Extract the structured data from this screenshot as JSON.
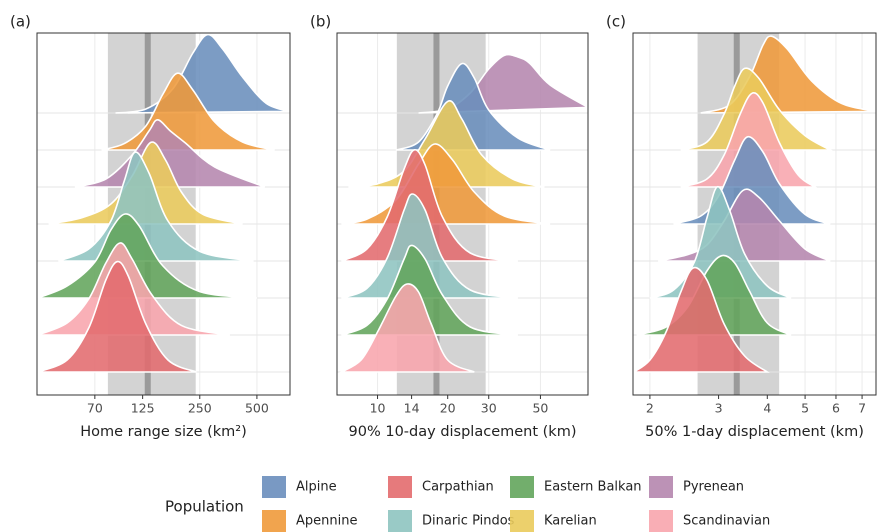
{
  "chart_data": [
    {
      "type": "ridgeline",
      "panel_label": "(a)",
      "xlabel": "Home range size (km²)",
      "xscale": "log",
      "xlim": [
        34.7,
        747
      ],
      "xticks": [
        70,
        125,
        250,
        500
      ],
      "band": [
        82,
        238
      ],
      "median": 133,
      "series": [
        {
          "name": "Alpine",
          "color": "#6a8ebc",
          "x": [
            90,
            130,
            180,
            230,
            275,
            330,
            420,
            560,
            740
          ],
          "values": [
            0,
            0.05,
            0.3,
            0.75,
            0.98,
            0.8,
            0.45,
            0.12,
            0.02
          ]
        },
        {
          "name": "Apennine",
          "color": "#ef9a3b",
          "x": [
            76,
            100,
            130,
            160,
            191,
            230,
            300,
            420,
            620
          ],
          "values": [
            0,
            0.08,
            0.3,
            0.7,
            0.96,
            0.75,
            0.35,
            0.1,
            0
          ]
        },
        {
          "name": "Pyrenean",
          "color": "#b586ae",
          "x": [
            55,
            80,
            110,
            135,
            150,
            175,
            210,
            300,
            550
          ],
          "values": [
            0,
            0.1,
            0.4,
            0.7,
            0.84,
            0.7,
            0.55,
            0.25,
            0
          ]
        },
        {
          "name": "Karelian",
          "color": "#eacb5c",
          "x": [
            40,
            60,
            85,
            110,
            138,
            165,
            200,
            260,
            420
          ],
          "values": [
            0,
            0.08,
            0.25,
            0.6,
            1.02,
            0.8,
            0.4,
            0.12,
            0
          ]
        },
        {
          "name": "Dinaric Pindos",
          "color": "#8ec4c0",
          "x": [
            45,
            65,
            85,
            100,
            114,
            135,
            170,
            250,
            480
          ],
          "values": [
            0,
            0.15,
            0.5,
            1.0,
            1.36,
            1.1,
            0.5,
            0.12,
            0
          ]
        },
        {
          "name": "Eastern Balkan",
          "color": "#63a55c",
          "x": [
            35,
            50,
            70,
            85,
            101,
            120,
            160,
            250,
            500
          ],
          "values": [
            0,
            0.15,
            0.45,
            0.85,
            1.05,
            0.9,
            0.4,
            0.08,
            0
          ]
        },
        {
          "name": "Scandinavian",
          "color": "#f8a5ad",
          "x": [
            35,
            50,
            65,
            80,
            95,
            110,
            140,
            200,
            360
          ],
          "values": [
            0,
            0.15,
            0.45,
            0.9,
            1.15,
            0.95,
            0.5,
            0.12,
            0
          ]
        },
        {
          "name": "Carpathian",
          "color": "#e36b6e",
          "x": [
            35,
            50,
            65,
            80,
            92,
            105,
            130,
            170,
            240
          ],
          "values": [
            0,
            0.15,
            0.55,
            1.15,
            1.38,
            1.2,
            0.6,
            0.15,
            0
          ]
        }
      ]
    },
    {
      "type": "ridgeline",
      "panel_label": "(b)",
      "xlabel": "90% 10-day displacement (km)",
      "xscale": "log",
      "xlim": [
        6.7,
        80
      ],
      "xticks": [
        10,
        14,
        20,
        30,
        50
      ],
      "band": [
        12.1,
        29.1
      ],
      "median": 17.9,
      "series": [
        {
          "name": "Pyrenean",
          "color": "#b586ae",
          "x": [
            15,
            20,
            25,
            30,
            35,
            40,
            45,
            55,
            80
          ],
          "values": [
            0,
            0.05,
            0.25,
            0.55,
            0.72,
            0.7,
            0.62,
            0.35,
            0.07
          ]
        },
        {
          "name": "Alpine",
          "color": "#6a8ebc",
          "x": [
            12,
            15,
            18,
            20,
            23,
            26,
            30,
            40,
            55
          ],
          "values": [
            0,
            0.1,
            0.45,
            0.8,
            1.08,
            0.9,
            0.5,
            0.15,
            0
          ]
        },
        {
          "name": "Karelian",
          "color": "#eacb5c",
          "x": [
            7.5,
            10,
            13,
            16,
            20,
            23,
            28,
            38,
            52
          ],
          "values": [
            0,
            0.04,
            0.2,
            0.6,
            1.07,
            0.85,
            0.4,
            0.1,
            0
          ]
        },
        {
          "name": "Apennine",
          "color": "#ef9a3b",
          "x": [
            7,
            9,
            12,
            15,
            17.6,
            21,
            26,
            35,
            55
          ],
          "values": [
            0,
            0.06,
            0.3,
            0.75,
            1.0,
            0.8,
            0.4,
            0.1,
            0
          ]
        },
        {
          "name": "Carpathian",
          "color": "#e36b6e",
          "x": [
            7,
            9,
            11,
            13,
            14.4,
            16,
            19,
            25,
            40
          ],
          "values": [
            0,
            0.15,
            0.55,
            1.15,
            1.39,
            1.2,
            0.55,
            0.1,
            0
          ]
        },
        {
          "name": "Dinaric Pindos",
          "color": "#8ec4c0",
          "x": [
            7,
            9,
            11,
            13,
            14.1,
            16,
            19,
            25,
            40
          ],
          "values": [
            0,
            0.12,
            0.5,
            1.1,
            1.3,
            1.1,
            0.5,
            0.1,
            0
          ]
        },
        {
          "name": "Eastern Balkan",
          "color": "#63a55c",
          "x": [
            7,
            9,
            11,
            13,
            14,
            16,
            19,
            25,
            40
          ],
          "values": [
            0,
            0.12,
            0.45,
            0.95,
            1.12,
            0.95,
            0.5,
            0.1,
            0
          ]
        },
        {
          "name": "Scandinavian",
          "color": "#f8a5ad",
          "x": [
            7,
            8.5,
            10,
            12,
            13.4,
            15,
            17,
            20,
            26
          ],
          "values": [
            0,
            0.15,
            0.5,
            0.95,
            1.1,
            1.0,
            0.6,
            0.15,
            0
          ]
        }
      ]
    },
    {
      "type": "ridgeline",
      "panel_label": "(c)",
      "xlabel": "50% 1-day displacement (km)",
      "xscale": "log",
      "xlim": [
        1.81,
        7.6
      ],
      "xticks": [
        2,
        3,
        4,
        5,
        6,
        7
      ],
      "band": [
        2.65,
        4.29
      ],
      "median": 3.34,
      "series": [
        {
          "name": "Apennine",
          "color": "#ef9a3b",
          "x": [
            2.7,
            3.2,
            3.6,
            3.9,
            4.1,
            4.5,
            5.2,
            6.2,
            7.6
          ],
          "values": [
            0,
            0.1,
            0.45,
            0.85,
            0.96,
            0.8,
            0.4,
            0.12,
            0.02
          ]
        },
        {
          "name": "Karelian",
          "color": "#eacb5c",
          "x": [
            2.4,
            2.8,
            3.1,
            3.3,
            3.5,
            3.8,
            4.3,
            5,
            5.8
          ],
          "values": [
            0,
            0.1,
            0.45,
            0.8,
            1.02,
            0.9,
            0.5,
            0.18,
            0
          ]
        },
        {
          "name": "Scandinavian",
          "color": "#f8a5ad",
          "x": [
            2.4,
            2.8,
            3.1,
            3.4,
            3.65,
            3.9,
            4.3,
            4.8,
            5.3
          ],
          "values": [
            0,
            0.1,
            0.4,
            0.9,
            1.17,
            1.05,
            0.55,
            0.15,
            0
          ]
        },
        {
          "name": "Alpine",
          "color": "#6a8ebc",
          "x": [
            2.3,
            2.7,
            3.0,
            3.3,
            3.56,
            3.9,
            4.3,
            5,
            5.8
          ],
          "values": [
            0,
            0.1,
            0.35,
            0.8,
            1.09,
            0.9,
            0.5,
            0.12,
            0
          ]
        },
        {
          "name": "Pyrenean",
          "color": "#b586ae",
          "x": [
            2.1,
            2.5,
            2.8,
            3.1,
            3.46,
            3.8,
            4.3,
            5,
            5.8
          ],
          "values": [
            0,
            0.08,
            0.2,
            0.5,
            0.88,
            0.8,
            0.5,
            0.15,
            0
          ]
        },
        {
          "name": "Dinaric Pindos",
          "color": "#8ec4c0",
          "x": [
            2,
            2.3,
            2.6,
            2.8,
            2.98,
            3.2,
            3.5,
            4,
            4.6
          ],
          "values": [
            0,
            0.1,
            0.45,
            1.0,
            1.39,
            1.1,
            0.55,
            0.15,
            0
          ]
        },
        {
          "name": "Eastern Balkan",
          "color": "#63a55c",
          "x": [
            1.85,
            2.2,
            2.5,
            2.8,
            3.05,
            3.3,
            3.6,
            4,
            4.6
          ],
          "values": [
            0,
            0.1,
            0.35,
            0.8,
            0.99,
            0.9,
            0.55,
            0.15,
            0
          ]
        },
        {
          "name": "Carpathian",
          "color": "#e36b6e",
          "x": [
            1.82,
            2,
            2.2,
            2.4,
            2.58,
            2.8,
            3.1,
            3.5,
            4
          ],
          "values": [
            0,
            0.15,
            0.5,
            1.0,
            1.3,
            1.15,
            0.6,
            0.2,
            0
          ]
        }
      ]
    }
  ],
  "legend": {
    "title": "Population",
    "items": [
      {
        "name": "Alpine",
        "color": "#6a8ebc"
      },
      {
        "name": "Apennine",
        "color": "#ef9a3b"
      },
      {
        "name": "Carpathian",
        "color": "#e36b6e"
      },
      {
        "name": "Dinaric Pindos",
        "color": "#8ec4c0"
      },
      {
        "name": "Eastern Balkan",
        "color": "#63a55c"
      },
      {
        "name": "Karelian",
        "color": "#eacb5c"
      },
      {
        "name": "Pyrenean",
        "color": "#b586ae"
      },
      {
        "name": "Scandinavian",
        "color": "#f8a5ad"
      }
    ]
  }
}
